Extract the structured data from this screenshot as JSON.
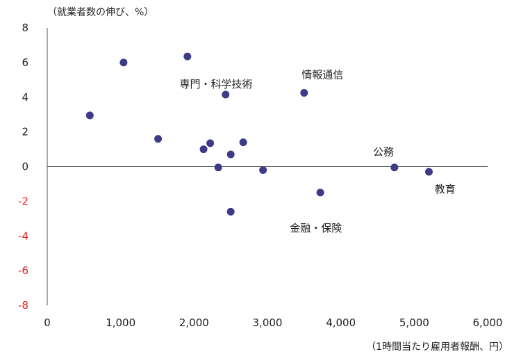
{
  "chart_data": {
    "type": "scatter",
    "ylabel": "（就業者数の伸び、%）",
    "xlabel": "（1時間当たり雇用者報酬、円）",
    "xlim": [
      0,
      6000
    ],
    "ylim": [
      -8,
      8
    ],
    "x_ticks": [
      "0",
      "1,000",
      "2,000",
      "3,000",
      "4,000",
      "5,000",
      "6,000"
    ],
    "x_tick_values": [
      0,
      1000,
      2000,
      3000,
      4000,
      5000,
      6000
    ],
    "y_ticks": [
      "8",
      "6",
      "4",
      "2",
      "0",
      "-2",
      "-4",
      "-6",
      "-8"
    ],
    "y_tick_values": [
      8,
      6,
      4,
      2,
      0,
      -2,
      -4,
      -6,
      -8
    ],
    "colors": {
      "point": "#3d3a87",
      "negative_tick": "#e8211b",
      "tick": "#222222",
      "axis": "#555555"
    },
    "points": [
      {
        "x": 580,
        "y": 2.95
      },
      {
        "x": 1040,
        "y": 6.0
      },
      {
        "x": 1510,
        "y": 1.6
      },
      {
        "x": 1910,
        "y": 6.35
      },
      {
        "x": 2130,
        "y": 1.0
      },
      {
        "x": 2220,
        "y": 1.35
      },
      {
        "x": 2330,
        "y": -0.05
      },
      {
        "x": 2430,
        "y": 4.15
      },
      {
        "x": 2500,
        "y": 0.7
      },
      {
        "x": 2500,
        "y": -2.6
      },
      {
        "x": 2670,
        "y": 1.4
      },
      {
        "x": 2940,
        "y": -0.2
      },
      {
        "x": 3500,
        "y": 4.25
      },
      {
        "x": 3720,
        "y": -1.5
      },
      {
        "x": 4730,
        "y": -0.05
      },
      {
        "x": 5200,
        "y": -0.3
      }
    ],
    "annotations": [
      {
        "text": "専門・科学技術",
        "x": 2300,
        "y": 4.75
      },
      {
        "text": "情報通信",
        "x": 3750,
        "y": 5.3
      },
      {
        "text": "公務",
        "x": 4580,
        "y": 0.85
      },
      {
        "text": "教育",
        "x": 5420,
        "y": -1.3
      },
      {
        "text": "金融・保険",
        "x": 3660,
        "y": -3.55
      }
    ]
  }
}
